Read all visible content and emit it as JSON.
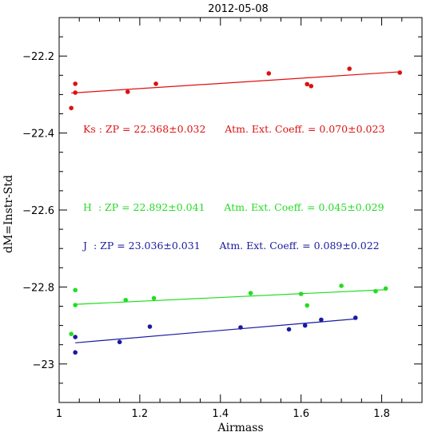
{
  "chart_data": {
    "type": "scatter",
    "title": "2012-05-08",
    "xlabel": "Airmass",
    "ylabel": "dM=Instr-Std",
    "xlim": [
      1.0,
      1.9
    ],
    "ylim": [
      -23.1,
      -22.1
    ],
    "x_ticks": [
      1.0,
      1.2,
      1.4,
      1.6,
      1.8
    ],
    "x_tick_labels": [
      "1",
      "1.2",
      "1.4",
      "1.6",
      "1.8"
    ],
    "y_ticks": [
      -23.0,
      -22.8,
      -22.6,
      -22.4,
      -22.2
    ],
    "y_tick_labels": [
      "−23",
      "−22.8",
      "−22.6",
      "−22.4",
      "−22.2"
    ],
    "series": [
      {
        "name": "Ks",
        "color": "#dd1111",
        "points": [
          [
            1.03,
            -22.335
          ],
          [
            1.04,
            -22.295
          ],
          [
            1.04,
            -22.272
          ],
          [
            1.17,
            -22.293
          ],
          [
            1.24,
            -22.272
          ],
          [
            1.52,
            -22.245
          ],
          [
            1.615,
            -22.273
          ],
          [
            1.625,
            -22.278
          ],
          [
            1.72,
            -22.233
          ],
          [
            1.845,
            -22.243
          ]
        ],
        "fit": [
          [
            1.03,
            -22.296
          ],
          [
            1.845,
            -22.241
          ]
        ],
        "annotation": "Ks : ZP = 22.368±0.032      Atm. Ext. Coeff. = 0.070±0.023"
      },
      {
        "name": "H",
        "color": "#22dd22",
        "points": [
          [
            1.03,
            -22.922
          ],
          [
            1.04,
            -22.808
          ],
          [
            1.04,
            -22.847
          ],
          [
            1.165,
            -22.834
          ],
          [
            1.235,
            -22.829
          ],
          [
            1.475,
            -22.816
          ],
          [
            1.6,
            -22.818
          ],
          [
            1.615,
            -22.848
          ],
          [
            1.7,
            -22.797
          ],
          [
            1.785,
            -22.811
          ],
          [
            1.81,
            -22.804
          ]
        ],
        "fit": [
          [
            1.04,
            -22.845
          ],
          [
            1.81,
            -22.807
          ]
        ],
        "annotation": "H  : ZP = 22.892±0.041      Atm. Ext. Coeff. = 0.045±0.029"
      },
      {
        "name": "J",
        "color": "#1a1aa0",
        "points": [
          [
            1.04,
            -22.93
          ],
          [
            1.04,
            -22.97
          ],
          [
            1.15,
            -22.943
          ],
          [
            1.225,
            -22.903
          ],
          [
            1.45,
            -22.905
          ],
          [
            1.57,
            -22.91
          ],
          [
            1.61,
            -22.9
          ],
          [
            1.65,
            -22.885
          ],
          [
            1.735,
            -22.88
          ]
        ],
        "fit": [
          [
            1.04,
            -22.945
          ],
          [
            1.735,
            -22.883
          ]
        ],
        "annotation": "J  : ZP = 23.036±0.031      Atm. Ext. Coeff. = 0.089±0.022"
      }
    ]
  }
}
